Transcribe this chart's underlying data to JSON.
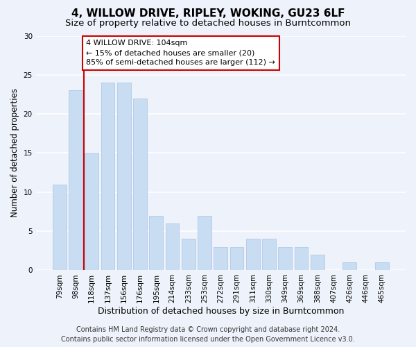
{
  "title": "4, WILLOW DRIVE, RIPLEY, WOKING, GU23 6LF",
  "subtitle": "Size of property relative to detached houses in Burntcommon",
  "xlabel": "Distribution of detached houses by size in Burntcommon",
  "ylabel": "Number of detached properties",
  "categories": [
    "79sqm",
    "98sqm",
    "118sqm",
    "137sqm",
    "156sqm",
    "176sqm",
    "195sqm",
    "214sqm",
    "233sqm",
    "253sqm",
    "272sqm",
    "291sqm",
    "311sqm",
    "330sqm",
    "349sqm",
    "369sqm",
    "388sqm",
    "407sqm",
    "426sqm",
    "446sqm",
    "465sqm"
  ],
  "values": [
    11,
    23,
    15,
    24,
    24,
    22,
    7,
    6,
    4,
    7,
    3,
    3,
    4,
    4,
    3,
    3,
    2,
    0,
    1,
    0,
    1
  ],
  "bar_color": "#c9ddf2",
  "bar_edge_color": "#b0c8e8",
  "vline_x_idx": 1.5,
  "vline_color": "#cc0000",
  "annotation_text": "4 WILLOW DRIVE: 104sqm\n← 15% of detached houses are smaller (20)\n85% of semi-detached houses are larger (112) →",
  "annotation_box_facecolor": "#ffffff",
  "annotation_box_edgecolor": "#cc0000",
  "ylim": [
    0,
    30
  ],
  "yticks": [
    0,
    5,
    10,
    15,
    20,
    25,
    30
  ],
  "footer1": "Contains HM Land Registry data © Crown copyright and database right 2024.",
  "footer2": "Contains public sector information licensed under the Open Government Licence v3.0.",
  "bg_color": "#eef2fa",
  "grid_color": "#ffffff",
  "title_fontsize": 11,
  "subtitle_fontsize": 9.5,
  "ylabel_fontsize": 8.5,
  "xlabel_fontsize": 9,
  "tick_fontsize": 7.5,
  "annotation_fontsize": 8,
  "footer_fontsize": 7
}
